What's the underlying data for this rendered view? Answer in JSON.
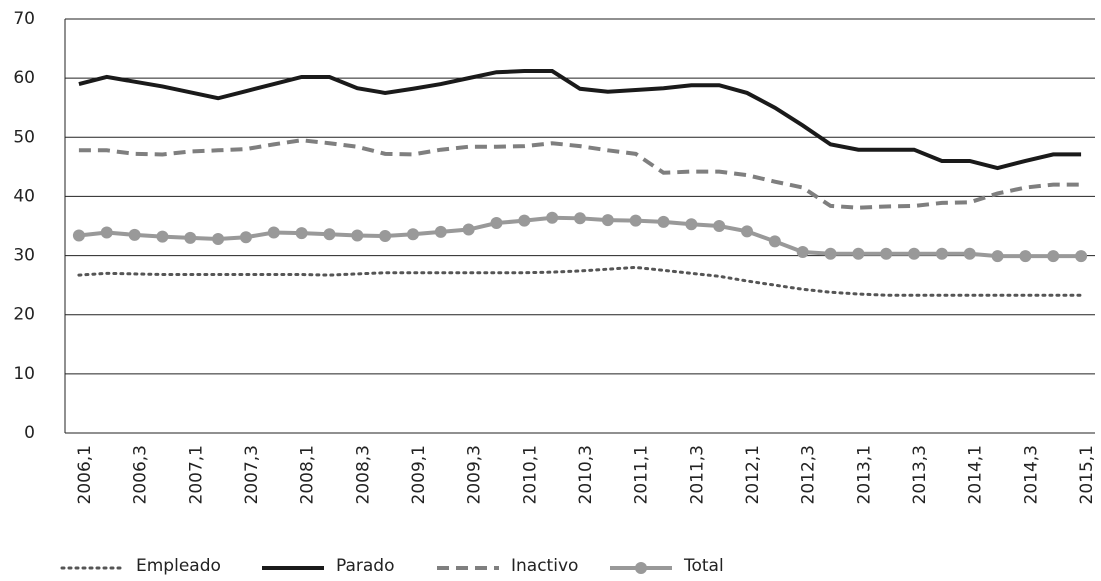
{
  "chart_data": {
    "type": "line",
    "categories": [
      "2006,1",
      null,
      "2006,3",
      null,
      "2007,1",
      null,
      "2007,3",
      null,
      "2008,1",
      null,
      "2008,3",
      null,
      "2009,1",
      null,
      "2009,3",
      null,
      "2010,1",
      null,
      "2010,3",
      null,
      "2011,1",
      null,
      "2011,3",
      null,
      "2012,1",
      null,
      "2012,3",
      null,
      "2013,1",
      null,
      "2013,3",
      null,
      "2014,1",
      null,
      "2014,3",
      null,
      "2015,1"
    ],
    "series": [
      {
        "name": "Empleado",
        "color": "#555555",
        "dash": "dotted",
        "marker": false,
        "values": [
          26.7,
          27.0,
          26.9,
          26.8,
          26.8,
          26.8,
          26.8,
          26.8,
          26.8,
          26.7,
          26.9,
          27.1,
          27.1,
          27.1,
          27.1,
          27.1,
          27.1,
          27.2,
          27.4,
          27.7,
          28.0,
          27.5,
          27.0,
          26.5,
          25.7,
          25.0,
          24.3,
          23.8,
          23.5,
          23.3,
          23.3,
          23.3,
          23.3,
          23.3,
          23.3,
          23.3,
          23.3
        ]
      },
      {
        "name": "Parado",
        "color": "#1a1a1a",
        "dash": "solid",
        "marker": false,
        "values": [
          59,
          60.2,
          59.4,
          58.6,
          57.6,
          56.6,
          57.8,
          59,
          60.2,
          60.2,
          58.3,
          57.5,
          58.2,
          59,
          60,
          61,
          61.2,
          61.2,
          58.2,
          57.7,
          58,
          58.3,
          58.8,
          58.8,
          57.5,
          55,
          52,
          48.8,
          47.9,
          47.9,
          47.9,
          46,
          46,
          44.8,
          46,
          47.1,
          47.1
        ]
      },
      {
        "name": "Inactivo",
        "color": "#7f7f7f",
        "dash": "dashed",
        "marker": false,
        "values": [
          47.8,
          47.8,
          47.2,
          47.1,
          47.6,
          47.8,
          48,
          48.8,
          49.5,
          49.0,
          48.4,
          47.2,
          47.1,
          47.9,
          48.4,
          48.4,
          48.5,
          49,
          48.5,
          47.8,
          47.2,
          44,
          44.2,
          44.2,
          43.6,
          42.5,
          41.5,
          38.4,
          38.1,
          38.3,
          38.4,
          38.9,
          39,
          40.5,
          41.5,
          42,
          42
        ]
      },
      {
        "name": "Total",
        "color": "#999999",
        "dash": "solid",
        "marker": true,
        "values": [
          33.4,
          33.9,
          33.5,
          33.2,
          33.0,
          32.8,
          33.1,
          33.9,
          33.8,
          33.6,
          33.4,
          33.3,
          33.6,
          34.0,
          34.4,
          35.5,
          35.9,
          36.4,
          36.3,
          36.0,
          35.9,
          35.7,
          35.3,
          35.0,
          34.1,
          32.4,
          30.6,
          30.3,
          30.3,
          30.3,
          30.3,
          30.3,
          30.3,
          29.9,
          29.9,
          29.9,
          29.9
        ]
      }
    ],
    "ylim": [
      0,
      70
    ],
    "yticks": [
      0,
      10,
      20,
      30,
      40,
      50,
      60,
      70
    ],
    "grid": true,
    "legend": "bottom"
  }
}
